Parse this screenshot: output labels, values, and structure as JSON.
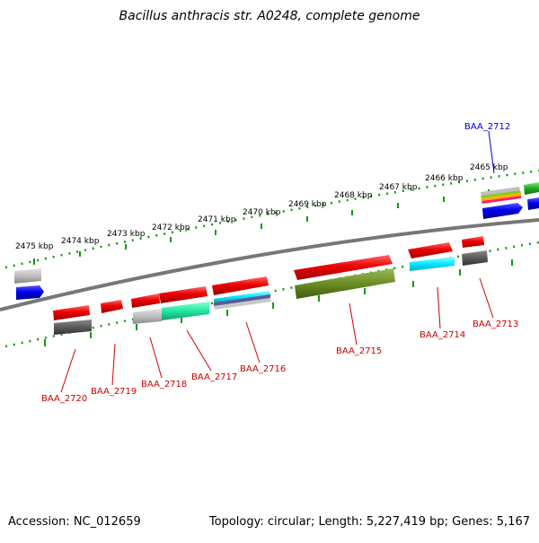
{
  "title": "Bacillus anthracis str. A0248, complete genome",
  "footer": {
    "accession": "Accession: NC_012659",
    "stats": "Topology: circular; Length: 5,227,419 bp; Genes: 5,167"
  },
  "scale_labels": [
    "2475 kbp",
    "2474 kbp",
    "2473 kbp",
    "2472 kbp",
    "2471 kbp",
    "2470 kbp",
    "2469 kbp",
    "2468 kbp",
    "2467 kbp",
    "2466 kbp",
    "2465 kbp"
  ],
  "gene_labels": [
    "BAA_2712",
    "BAA_2713",
    "BAA_2714",
    "BAA_2715",
    "BAA_2716",
    "BAA_2717",
    "BAA_2718",
    "BAA_2719",
    "BAA_2720"
  ],
  "colors": {
    "forward_gene": "#ee0000",
    "outer_label": "#0000cc",
    "inner_label": "#cc0000",
    "tick": "#119911",
    "backbone": "#777777"
  }
}
